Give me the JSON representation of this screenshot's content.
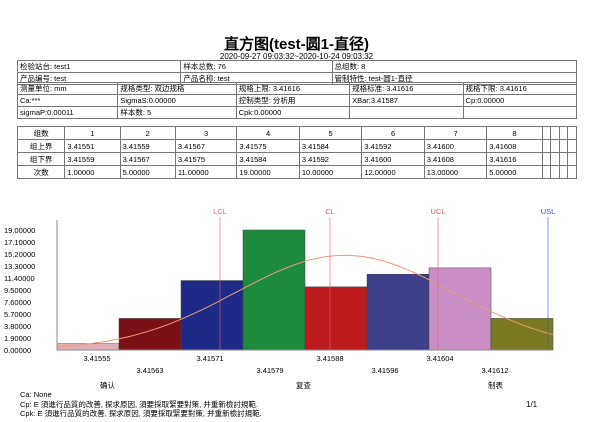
{
  "title": "直方图(test-圆1-直径)",
  "date_range": "2020-09-27 09:03:32~2020-10-24 09:03:32",
  "info": {
    "row1": [
      "检验站台: test1",
      "样本总数: 76",
      "总组数: 8"
    ],
    "row2": [
      "产品编号: test",
      "产品名称: test",
      "管制特性: test-圆1-直径"
    ],
    "row3": [
      "测量单位: mm",
      "规格类型: 双边规格",
      "规格上限: 3.41616",
      "规格标准: 3.41616",
      "规格下限: 3.41616"
    ],
    "row4": [
      "Ca:***",
      "SigmaS:0.00000",
      "控制类型: 分析用",
      "XBar:3.41587",
      "Cp:0.00000"
    ],
    "row5": [
      "sigmaP:0.00011",
      "样本数: 5",
      "Cpk:0.00000"
    ]
  },
  "grid": {
    "header": [
      "组数",
      "1",
      "2",
      "3",
      "4",
      "5",
      "6",
      "7",
      "8"
    ],
    "rows": [
      {
        "label": "组上界",
        "cells": [
          "3.41551",
          "3.41559",
          "3.41567",
          "3.41575",
          "3.41584",
          "3.41592",
          "3.41600",
          "3.41608"
        ]
      },
      {
        "label": "组下界",
        "cells": [
          "3.41559",
          "3.41567",
          "3.41575",
          "3.41584",
          "3.41592",
          "3.41600",
          "3.41608",
          "3.41616"
        ]
      },
      {
        "label": "次数",
        "cells": [
          "1.00000",
          "5.00000",
          "11.00000",
          "19.00000",
          "10.00000",
          "12.00000",
          "13.00000",
          "5.00000"
        ]
      }
    ]
  },
  "chart_data": {
    "type": "bar",
    "title": "",
    "xlabel": "",
    "ylabel": "",
    "categories": [
      "1",
      "2",
      "3",
      "4",
      "5",
      "6",
      "7",
      "8"
    ],
    "values": [
      1,
      5,
      11,
      19,
      10,
      12,
      13,
      5
    ],
    "colors": [
      "#e0aeb8",
      "#7a1018",
      "#1f2a86",
      "#1d8a3c",
      "#bd1a1c",
      "#3d3f8a",
      "#c98fc4",
      "#7a7a22"
    ],
    "yticks": [
      "19.00000",
      "17.10000",
      "15.20000",
      "13.30000",
      "11.40000",
      "9.50000",
      "7.60000",
      "5.70000",
      "3.80000",
      "1.90000",
      "0.00000"
    ],
    "ylim": [
      0,
      19
    ],
    "xticks_upper": [
      "3.41555",
      "3.41571",
      "3.41588",
      "3.41604"
    ],
    "xticks_lower": [
      "3.41563",
      "3.41579",
      "3.41596",
      "3.41612"
    ],
    "ref_lines": [
      {
        "label": "LCL",
        "color": "#e06070"
      },
      {
        "label": "CL",
        "color": "#e06070"
      },
      {
        "label": "UCL",
        "color": "#e06070"
      },
      {
        "label": "USL",
        "color": "#3060c0"
      }
    ]
  },
  "signoff": [
    "确认",
    "复查",
    "制表"
  ],
  "footnotes": [
    "Ca:  None",
    "Cp: E 須進行品質的改善, 探求原因, 須要採取緊要對策, 并重新檢討規範.",
    "Cpk: E 須進行品質的改善, 探求原因, 須要採取緊要對策, 并重新檢討規範."
  ],
  "page_number": "1/1"
}
